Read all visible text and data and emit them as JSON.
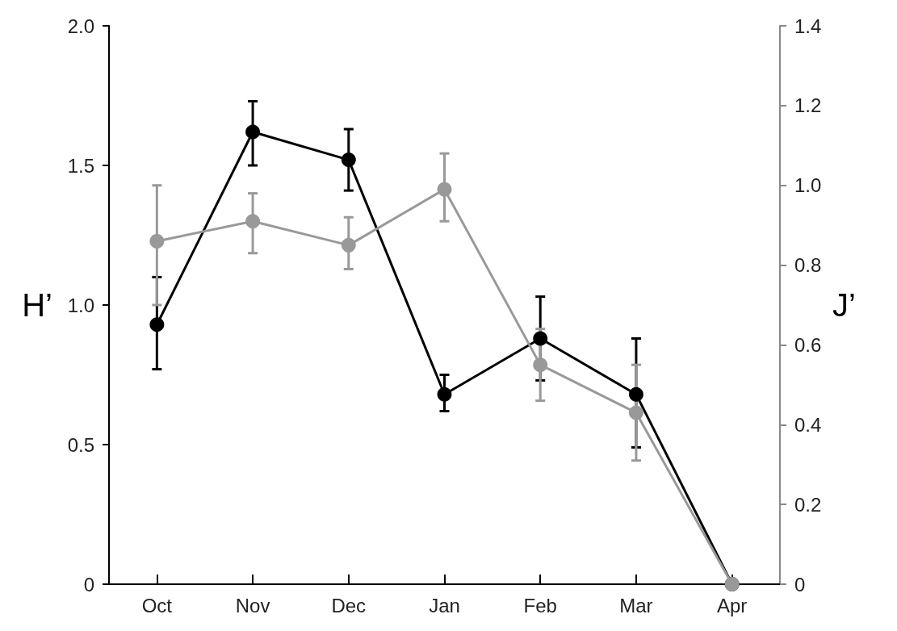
{
  "chart_data": {
    "type": "line",
    "ylabel": "H’",
    "y2label": "J’",
    "categories": [
      "Oct",
      "Nov",
      "Dec",
      "Jan",
      "Feb",
      "Mar",
      "Apr"
    ],
    "series": [
      {
        "color": "#000000",
        "values": [
          0.93,
          1.62,
          1.52,
          0.68,
          0.88,
          0.68,
          0
        ],
        "errors": [
          [
            0.77,
            1.1
          ],
          [
            1.5,
            1.73
          ],
          [
            1.41,
            1.63
          ],
          [
            0.62,
            0.75
          ],
          [
            0.73,
            1.03
          ],
          [
            0.49,
            0.88
          ],
          null
        ]
      },
      {
        "color": "#999999",
        "axis": "y2",
        "values": [
          0.86,
          0.91,
          0.85,
          0.99,
          0.55,
          0.43,
          0
        ],
        "errors": [
          [
            0.7,
            1.0
          ],
          [
            0.83,
            0.98
          ],
          [
            0.79,
            0.92
          ],
          [
            0.91,
            1.08
          ],
          [
            0.46,
            0.64
          ],
          [
            0.31,
            0.55
          ],
          null
        ]
      }
    ],
    "ylim": [
      0,
      2.0
    ],
    "yticks": [
      0,
      0.5,
      {
        "value": 1,
        "label": "1.0"
      },
      1.5,
      {
        "value": 2,
        "label": "2.0"
      }
    ],
    "y2lim": [
      0,
      1.4
    ],
    "y2ticks": [
      0,
      0.2,
      0.4,
      0.6,
      0.8,
      {
        "value": 1,
        "label": "1.0"
      },
      1.2,
      1.4
    ],
    "marker": "circle",
    "grid": false
  }
}
